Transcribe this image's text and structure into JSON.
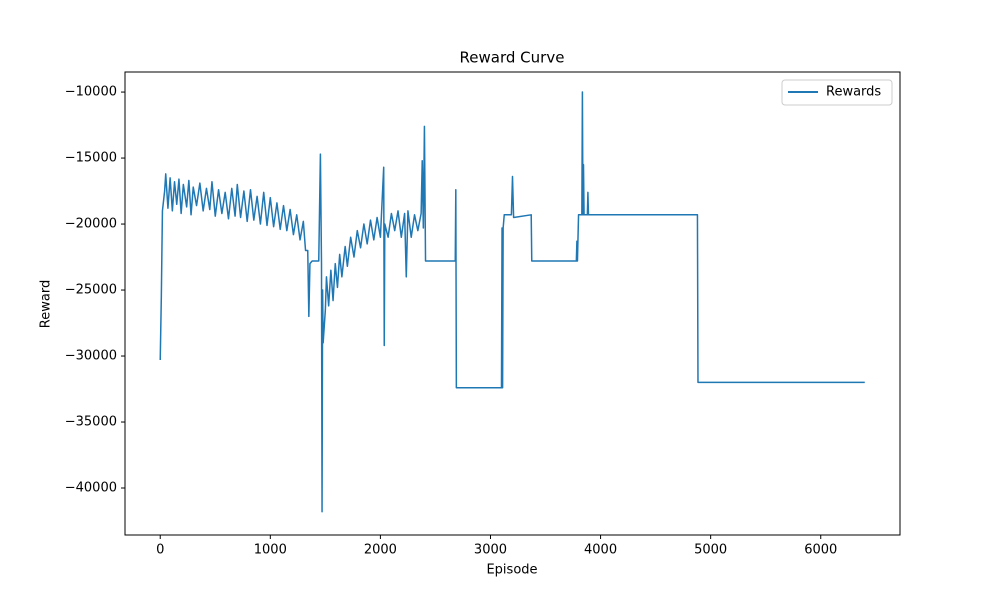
{
  "chart_data": {
    "type": "line",
    "title": "Reward Curve",
    "x_label": "Episode",
    "y_label": "Reward",
    "x": [
      0,
      10,
      20,
      40,
      50,
      70,
      90,
      110,
      130,
      150,
      170,
      190,
      210,
      240,
      260,
      280,
      300,
      330,
      360,
      390,
      420,
      450,
      470,
      500,
      530,
      560,
      590,
      620,
      650,
      680,
      700,
      730,
      760,
      790,
      820,
      850,
      880,
      910,
      940,
      970,
      1000,
      1030,
      1060,
      1090,
      1120,
      1150,
      1180,
      1210,
      1240,
      1270,
      1300,
      1320,
      1340,
      1350,
      1360,
      1380,
      1440,
      1455,
      1465,
      1470,
      1475,
      1480,
      1500,
      1510,
      1530,
      1550,
      1570,
      1590,
      1610,
      1630,
      1650,
      1680,
      1700,
      1730,
      1760,
      1790,
      1820,
      1850,
      1880,
      1910,
      1940,
      1970,
      2000,
      2030,
      2035,
      2040,
      2070,
      2100,
      2130,
      2160,
      2190,
      2220,
      2235,
      2250,
      2280,
      2310,
      2340,
      2370,
      2380,
      2390,
      2400,
      2410,
      2680,
      2685,
      2690,
      3100,
      3105,
      3110,
      3115,
      3125,
      3190,
      3200,
      3210,
      3370,
      3375,
      3780,
      3785,
      3790,
      3800,
      3830,
      3835,
      3840,
      3845,
      3850,
      3880,
      3885,
      3890,
      4880,
      4885,
      6400
    ],
    "series": [
      {
        "name": "Rewards",
        "color": "#1f77b4",
        "values": [
          -30300,
          -25500,
          -19000,
          -17500,
          -16200,
          -18800,
          -16500,
          -19000,
          -16800,
          -18500,
          -16600,
          -19200,
          -17000,
          -18700,
          -16700,
          -19300,
          -17200,
          -18600,
          -16900,
          -19000,
          -17300,
          -18900,
          -16800,
          -19400,
          -17400,
          -19200,
          -17600,
          -19600,
          -17300,
          -19400,
          -17000,
          -19500,
          -17500,
          -19800,
          -17400,
          -19700,
          -17900,
          -20000,
          -17600,
          -20100,
          -18000,
          -20200,
          -18400,
          -20400,
          -18600,
          -20500,
          -18900,
          -20800,
          -19300,
          -21200,
          -19800,
          -22000,
          -22000,
          -27000,
          -23000,
          -22800,
          -22800,
          -14700,
          -23000,
          -41800,
          -25000,
          -29000,
          -26500,
          -24000,
          -26200,
          -23500,
          -25800,
          -23000,
          -24800,
          -22300,
          -24000,
          -21700,
          -23200,
          -21000,
          -22500,
          -20500,
          -21800,
          -20000,
          -21500,
          -19700,
          -21200,
          -19500,
          -21000,
          -15700,
          -29200,
          -20000,
          -21000,
          -19200,
          -20500,
          -19000,
          -21000,
          -19200,
          -24000,
          -19000,
          -21000,
          -19300,
          -20500,
          -19200,
          -15200,
          -20300,
          -12600,
          -22800,
          -22800,
          -17400,
          -32400,
          -32400,
          -20300,
          -32400,
          -20300,
          -19300,
          -19300,
          -16400,
          -19500,
          -19300,
          -22800,
          -22800,
          -21300,
          -22800,
          -19300,
          -19300,
          -10000,
          -19300,
          -15500,
          -19300,
          -19300,
          -17600,
          -19300,
          -19300,
          -32000,
          -32000
        ]
      }
    ],
    "xlim": [
      -320,
      6720
    ],
    "ylim": [
      -43560,
      -8480
    ],
    "xticks": [
      0,
      1000,
      2000,
      3000,
      4000,
      5000,
      6000
    ],
    "yticks": [
      {
        "value": -40000,
        "label": "−40000"
      },
      {
        "value": -35000,
        "label": "−35000"
      },
      {
        "value": -30000,
        "label": "−30000"
      },
      {
        "value": -25000,
        "label": "−25000"
      },
      {
        "value": -20000,
        "label": "−20000"
      },
      {
        "value": -15000,
        "label": "−15000"
      },
      {
        "value": -10000,
        "label": "−10000"
      }
    ],
    "legend": "upper right"
  }
}
